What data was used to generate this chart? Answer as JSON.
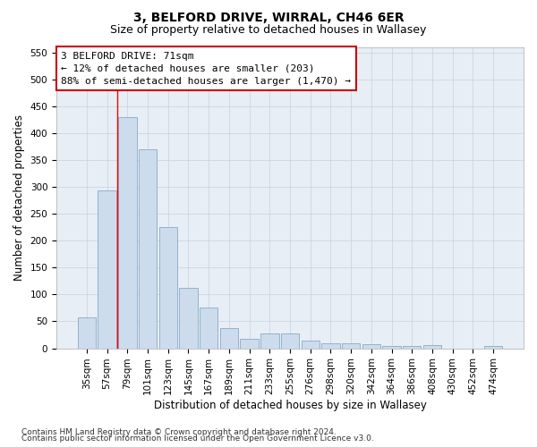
{
  "title": "3, BELFORD DRIVE, WIRRAL, CH46 6ER",
  "subtitle": "Size of property relative to detached houses in Wallasey",
  "xlabel": "Distribution of detached houses by size in Wallasey",
  "ylabel": "Number of detached properties",
  "footnote1": "Contains HM Land Registry data © Crown copyright and database right 2024.",
  "footnote2": "Contains public sector information licensed under the Open Government Licence v3.0.",
  "categories": [
    "35sqm",
    "57sqm",
    "79sqm",
    "101sqm",
    "123sqm",
    "145sqm",
    "167sqm",
    "189sqm",
    "211sqm",
    "233sqm",
    "255sqm",
    "276sqm",
    "298sqm",
    "320sqm",
    "342sqm",
    "364sqm",
    "386sqm",
    "408sqm",
    "430sqm",
    "452sqm",
    "474sqm"
  ],
  "values": [
    57,
    293,
    430,
    369,
    226,
    113,
    76,
    38,
    17,
    27,
    27,
    15,
    10,
    10,
    7,
    4,
    4,
    6,
    0,
    0,
    5
  ],
  "bar_color": "#ccdcec",
  "bar_edge_color": "#88aac8",
  "grid_color": "#c8d0dc",
  "annotation_line1": "3 BELFORD DRIVE: 71sqm",
  "annotation_line2": "← 12% of detached houses are smaller (203)",
  "annotation_line3": "88% of semi-detached houses are larger (1,470) →",
  "annotation_box_facecolor": "#ffffff",
  "annotation_box_edgecolor": "#cc0000",
  "red_line_x": 1.5,
  "ylim_min": 0,
  "ylim_max": 560,
  "yticks": [
    0,
    50,
    100,
    150,
    200,
    250,
    300,
    350,
    400,
    450,
    500,
    550
  ],
  "fig_facecolor": "#ffffff",
  "plot_facecolor": "#e8eef5",
  "title_fontsize": 10,
  "subtitle_fontsize": 9,
  "axis_label_fontsize": 8.5,
  "tick_fontsize": 7.5,
  "annotation_fontsize": 8,
  "footnote_fontsize": 6.5
}
